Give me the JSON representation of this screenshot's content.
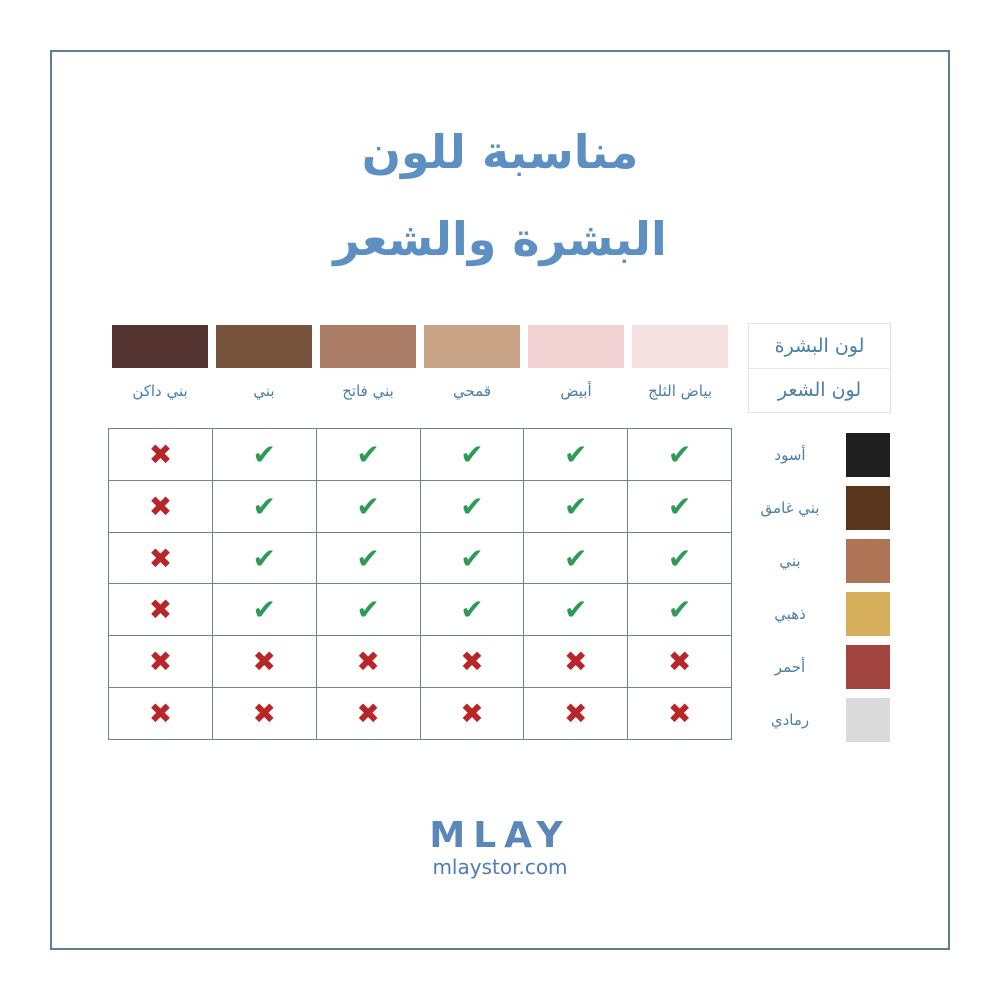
{
  "title": {
    "line1": "مناسبة للون",
    "line2": "البشرة والشعر"
  },
  "header": {
    "skin_label": "لون البشرة",
    "hair_label": "لون الشعر"
  },
  "skin_tones": [
    {
      "label": "بياض الثلج",
      "color": "#f5e1e1"
    },
    {
      "label": "أبيض",
      "color": "#f2d1d2"
    },
    {
      "label": "قمحي",
      "color": "#c8a385"
    },
    {
      "label": "بني فاتح",
      "color": "#ab7d66"
    },
    {
      "label": "بني",
      "color": "#76533a"
    },
    {
      "label": "بني داكن",
      "color": "#54322f"
    }
  ],
  "hair_colors": [
    {
      "label": "أسود",
      "color": "#1f1f1f"
    },
    {
      "label": "بني غامق",
      "color": "#5a361e"
    },
    {
      "label": "بني",
      "color": "#ad7556"
    },
    {
      "label": "ذهبي",
      "color": "#d6ad5a"
    },
    {
      "label": "أحمر",
      "color": "#a24540"
    },
    {
      "label": "رمادي",
      "color": "#dadada"
    }
  ],
  "matrix": [
    [
      true,
      true,
      true,
      true,
      true,
      false
    ],
    [
      true,
      true,
      true,
      true,
      true,
      false
    ],
    [
      true,
      true,
      true,
      true,
      true,
      false
    ],
    [
      true,
      true,
      true,
      true,
      true,
      false
    ],
    [
      false,
      false,
      false,
      false,
      false,
      false
    ],
    [
      false,
      false,
      false,
      false,
      false,
      false
    ]
  ],
  "icons": {
    "yes": "check-icon",
    "no": "x-icon"
  },
  "colors": {
    "yes": "#2e9a58",
    "no": "#b8262a",
    "title": "#5d8fc2"
  },
  "brand": {
    "logo": "MLAY",
    "site": "mlaystor.com"
  }
}
